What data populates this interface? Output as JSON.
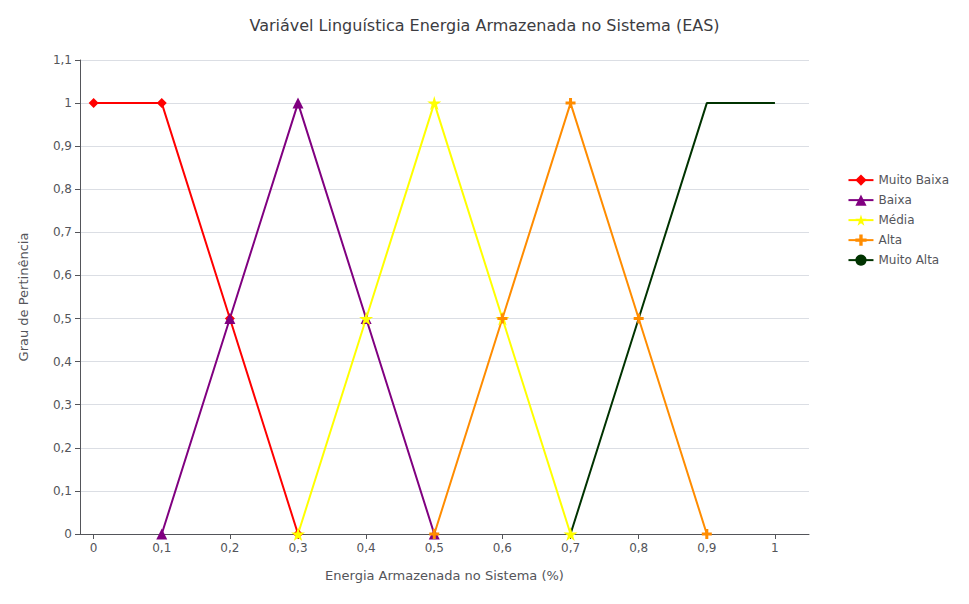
{
  "chart_data": {
    "type": "line",
    "title": "Variável Linguística Energia Armazenada no Sistema (EAS)",
    "xlabel": "Energia Armazenada no Sistema (%)",
    "ylabel": "Grau de Pertinência",
    "xlim": [
      -0.02,
      1.05
    ],
    "xticks": [
      0,
      {
        "value": 0.1,
        "label": "0,1"
      },
      {
        "value": 0.2,
        "label": "0,2"
      },
      {
        "value": 0.3,
        "label": "0,3"
      },
      {
        "value": 0.4,
        "label": "0,4"
      },
      {
        "value": 0.5,
        "label": "0,5"
      },
      {
        "value": 0.6,
        "label": "0,6"
      },
      {
        "value": 0.7,
        "label": "0,7"
      },
      {
        "value": 0.8,
        "label": "0,8"
      },
      {
        "value": 0.9,
        "label": "0,9"
      },
      1
    ],
    "ylim": [
      0,
      1.1
    ],
    "yticks": [
      0,
      {
        "value": 0.1,
        "label": "0,1"
      },
      {
        "value": 0.2,
        "label": "0,2"
      },
      {
        "value": 0.3,
        "label": "0,3"
      },
      {
        "value": 0.4,
        "label": "0,4"
      },
      {
        "value": 0.5,
        "label": "0,5"
      },
      {
        "value": 0.6,
        "label": "0,6"
      },
      {
        "value": 0.7,
        "label": "0,7"
      },
      {
        "value": 0.8,
        "label": "0,8"
      },
      {
        "value": 0.9,
        "label": "0,9"
      },
      1,
      {
        "value": 1.1,
        "label": "1,1"
      }
    ],
    "grid": true,
    "legend": "right",
    "series": [
      {
        "name": "Muito Baixa",
        "color": "#FF0000",
        "marker": "diamond",
        "x": [
          0,
          0.1,
          0.2,
          0.3
        ],
        "values": [
          1,
          1,
          0.5,
          0
        ]
      },
      {
        "name": "Baixa",
        "color": "#800080",
        "marker": "triangle",
        "x": [
          0.1,
          0.2,
          0.3,
          0.4,
          0.5
        ],
        "values": [
          0,
          0.5,
          1,
          0.5,
          0
        ]
      },
      {
        "name": "Média",
        "color": "#FFFF00",
        "marker": "star",
        "x": [
          0.3,
          0.4,
          0.5,
          0.6,
          0.7
        ],
        "values": [
          0,
          0.5,
          1,
          0.5,
          0
        ]
      },
      {
        "name": "Alta",
        "color": "#FF8C00",
        "marker": "plus",
        "x": [
          0.5,
          0.6,
          0.7,
          0.8,
          0.9
        ],
        "values": [
          0,
          0.5,
          1,
          0.5,
          0
        ]
      },
      {
        "name": "Muito Alta",
        "color": "#003300",
        "marker": "none",
        "x": [
          0.7,
          0.8,
          0.9,
          1.0
        ],
        "values": [
          0,
          0.5,
          1,
          1
        ]
      }
    ]
  }
}
